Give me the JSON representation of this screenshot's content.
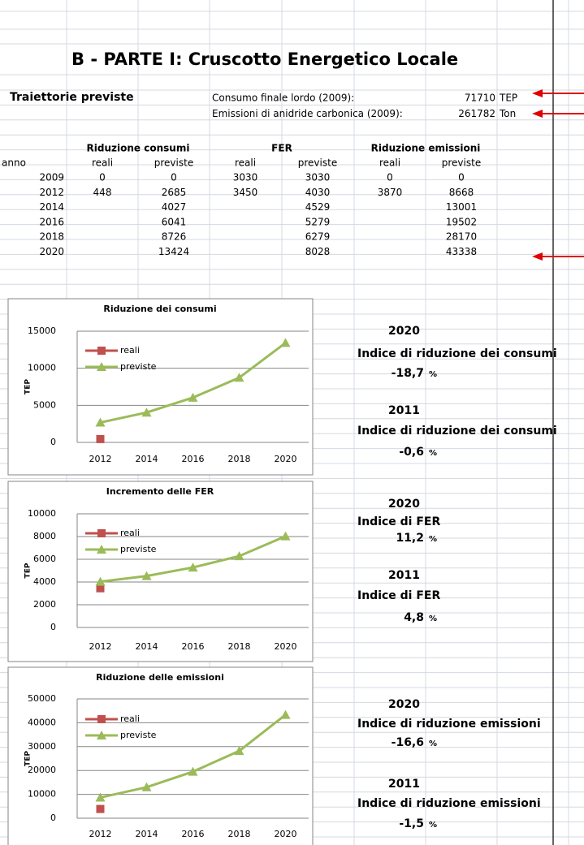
{
  "header": {
    "title": "B - PARTE I: Cruscotto Energetico Locale"
  },
  "summary": {
    "label": "Traiettorie previste",
    "rows": [
      {
        "label": "Consumo finale lordo (2009):",
        "value": "71710",
        "unit": "TEP"
      },
      {
        "label": "Emissioni di anidride carbonica (2009):",
        "value": "261782",
        "unit": "Ton"
      }
    ]
  },
  "table": {
    "groups": [
      "Riduzione consumi",
      "FER",
      "Riduzione emissioni"
    ],
    "columns": [
      "anno",
      "reali",
      "previste",
      "reali",
      "previste",
      "reali",
      "previste"
    ],
    "rows": [
      [
        "2009",
        "0",
        "0",
        "3030",
        "3030",
        "0",
        "0"
      ],
      [
        "2012",
        "448",
        "2685",
        "3450",
        "4030",
        "3870",
        "8668"
      ],
      [
        "2014",
        null,
        "4027",
        null,
        "4529",
        null,
        "13001"
      ],
      [
        "2016",
        null,
        "6041",
        null,
        "5279",
        null,
        "19502"
      ],
      [
        "2018",
        null,
        "8726",
        null,
        "6279",
        null,
        "28170"
      ],
      [
        "2020",
        null,
        "13424",
        null,
        "8028",
        null,
        "43338"
      ]
    ]
  },
  "chart_data": [
    {
      "type": "line",
      "title": "Riduzione dei consumi",
      "y_label": "TEP",
      "categories": [
        "2012",
        "2014",
        "2016",
        "2018",
        "2020"
      ],
      "series": [
        {
          "name": "reali",
          "color": "#c0504d",
          "values": [
            448,
            null,
            null,
            null,
            null
          ]
        },
        {
          "name": "previste",
          "color": "#9bbb59",
          "values": [
            2685,
            4027,
            6041,
            8726,
            13424
          ]
        }
      ],
      "ylim": [
        0,
        15000
      ],
      "yticks": [
        0,
        5000,
        10000,
        15000
      ],
      "grid": true
    },
    {
      "type": "line",
      "title": "Incremento delle FER",
      "y_label": "TEP",
      "categories": [
        "2012",
        "2014",
        "2016",
        "2018",
        "2020"
      ],
      "series": [
        {
          "name": "reali",
          "color": "#c0504d",
          "values": [
            3450,
            null,
            null,
            null,
            null
          ]
        },
        {
          "name": "previste",
          "color": "#9bbb59",
          "values": [
            4030,
            4529,
            5279,
            6279,
            8028
          ]
        }
      ],
      "ylim": [
        0,
        10000
      ],
      "yticks": [
        0,
        2000,
        4000,
        6000,
        8000,
        10000
      ],
      "grid": true
    },
    {
      "type": "line",
      "title": "Riduzione delle emissioni",
      "y_label": "TEP",
      "categories": [
        "2012",
        "2014",
        "2016",
        "2018",
        "2020"
      ],
      "series": [
        {
          "name": "reali",
          "color": "#c0504d",
          "values": [
            3870,
            null,
            null,
            null,
            null
          ]
        },
        {
          "name": "previste",
          "color": "#9bbb59",
          "values": [
            8668,
            13001,
            19502,
            28170,
            43338
          ]
        }
      ],
      "ylim": [
        0,
        50000
      ],
      "yticks": [
        0,
        10000,
        20000,
        30000,
        40000,
        50000
      ],
      "grid": true
    }
  ],
  "indicators": [
    {
      "year": "2020",
      "label": "Indice di riduzione dei consumi",
      "value": "-18,7",
      "unit": "%"
    },
    {
      "year": "2011",
      "label": "Indice di riduzione dei consumi",
      "value": "-0,6",
      "unit": "%"
    },
    {
      "year": "2020",
      "label": "Indice di FER",
      "value": "11,2",
      "unit": "%"
    },
    {
      "year": "2011",
      "label": "Indice di FER",
      "value": "4,8",
      "unit": "%"
    },
    {
      "year": "2020",
      "label": "Indice di riduzione emissioni",
      "value": "-16,6",
      "unit": "%"
    },
    {
      "year": "2011",
      "label": "Indice di riduzione emissioni",
      "value": "-1,5",
      "unit": "%"
    }
  ]
}
